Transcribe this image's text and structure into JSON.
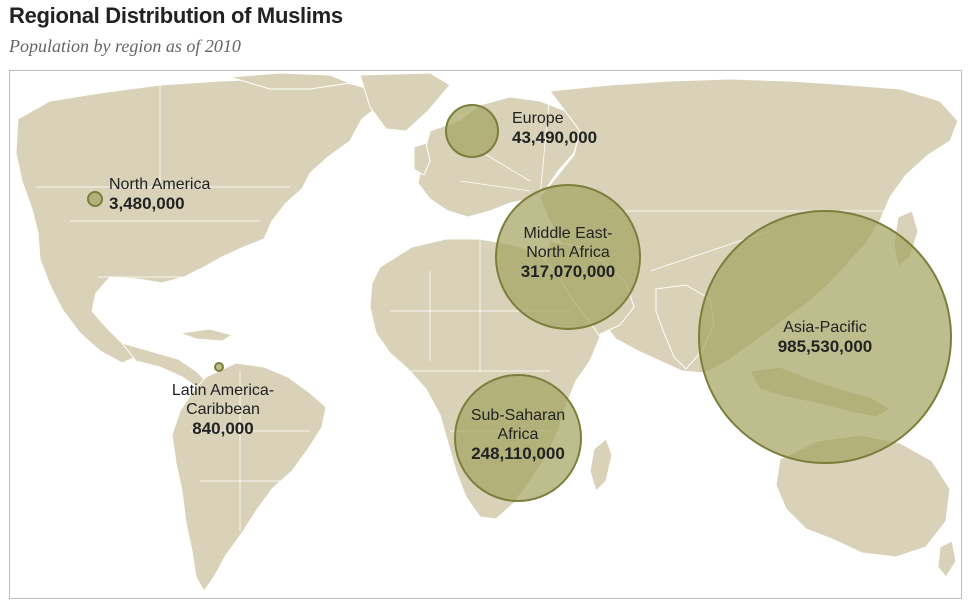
{
  "header": {
    "title": "Regional Distribution of Muslims",
    "subtitle": "Population by region as of 2010"
  },
  "map": {
    "colors": {
      "land": "#d9d2b8",
      "bubble": "#a4a463",
      "bubble_stroke": "#7b7f3c",
      "background": "#ffffff"
    }
  },
  "chart_data": {
    "type": "bubble-map",
    "title": "Regional Distribution of Muslims",
    "subtitle": "Population by region as of 2010",
    "regions": [
      {
        "name": "North America",
        "name_lines": [
          "North America"
        ],
        "value": 3480000,
        "value_label": "3,480,000"
      },
      {
        "name": "Europe",
        "name_lines": [
          "Europe"
        ],
        "value": 43490000,
        "value_label": "43,490,000"
      },
      {
        "name": "Middle East-North Africa",
        "name_lines": [
          "Middle East-",
          "North Africa"
        ],
        "value": 317070000,
        "value_label": "317,070,000"
      },
      {
        "name": "Asia-Pacific",
        "name_lines": [
          "Asia-Pacific"
        ],
        "value": 985530000,
        "value_label": "985,530,000"
      },
      {
        "name": "Latin America-Caribbean",
        "name_lines": [
          "Latin America-",
          "Caribbean"
        ],
        "value": 840000,
        "value_label": "840,000"
      },
      {
        "name": "Sub-Saharan Africa",
        "name_lines": [
          "Sub-Saharan",
          "Africa"
        ],
        "value": 248110000,
        "value_label": "248,110,000"
      }
    ]
  }
}
